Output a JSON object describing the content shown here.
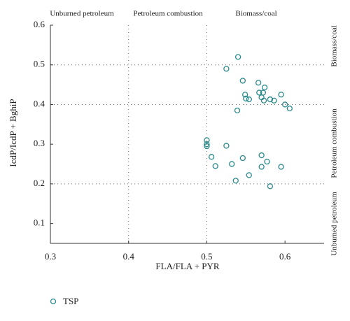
{
  "chart_data": {
    "type": "scatter",
    "xlabel": "FLA/FLA + PYR",
    "ylabel": "IcdP/IcdP + BghiP",
    "xlim": [
      0.3,
      0.65
    ],
    "ylim": [
      0.05,
      0.6
    ],
    "xticks": [
      0.3,
      0.4,
      0.5,
      0.6
    ],
    "yticks": [
      0.1,
      0.2,
      0.3,
      0.4,
      0.5,
      0.6
    ],
    "ref_x": [
      0.4,
      0.5
    ],
    "ref_y": [
      0.2,
      0.4,
      0.5
    ],
    "top_labels": [
      "Unburned petroleum",
      "Petroleum combustion",
      "Biomass/coal"
    ],
    "right_labels": [
      "Biomass/coal",
      "Petroleum combustion",
      "Unburned petroleum"
    ],
    "series": [
      {
        "name": "TSP",
        "color": "#2a8a8c",
        "x": [
          0.54,
          0.525,
          0.546,
          0.566,
          0.574,
          0.549,
          0.567,
          0.572,
          0.595,
          0.55,
          0.554,
          0.57,
          0.573,
          0.581,
          0.586,
          0.6,
          0.606,
          0.539,
          0.5,
          0.5,
          0.5,
          0.525,
          0.506,
          0.511,
          0.532,
          0.546,
          0.57,
          0.577,
          0.57,
          0.595,
          0.537,
          0.554,
          0.581
        ],
        "values": [
          0.52,
          0.49,
          0.46,
          0.455,
          0.443,
          0.425,
          0.43,
          0.43,
          0.425,
          0.415,
          0.413,
          0.418,
          0.41,
          0.413,
          0.41,
          0.4,
          0.39,
          0.385,
          0.31,
          0.3,
          0.295,
          0.296,
          0.268,
          0.245,
          0.25,
          0.265,
          0.272,
          0.256,
          0.243,
          0.243,
          0.208,
          0.222,
          0.194
        ]
      }
    ]
  }
}
